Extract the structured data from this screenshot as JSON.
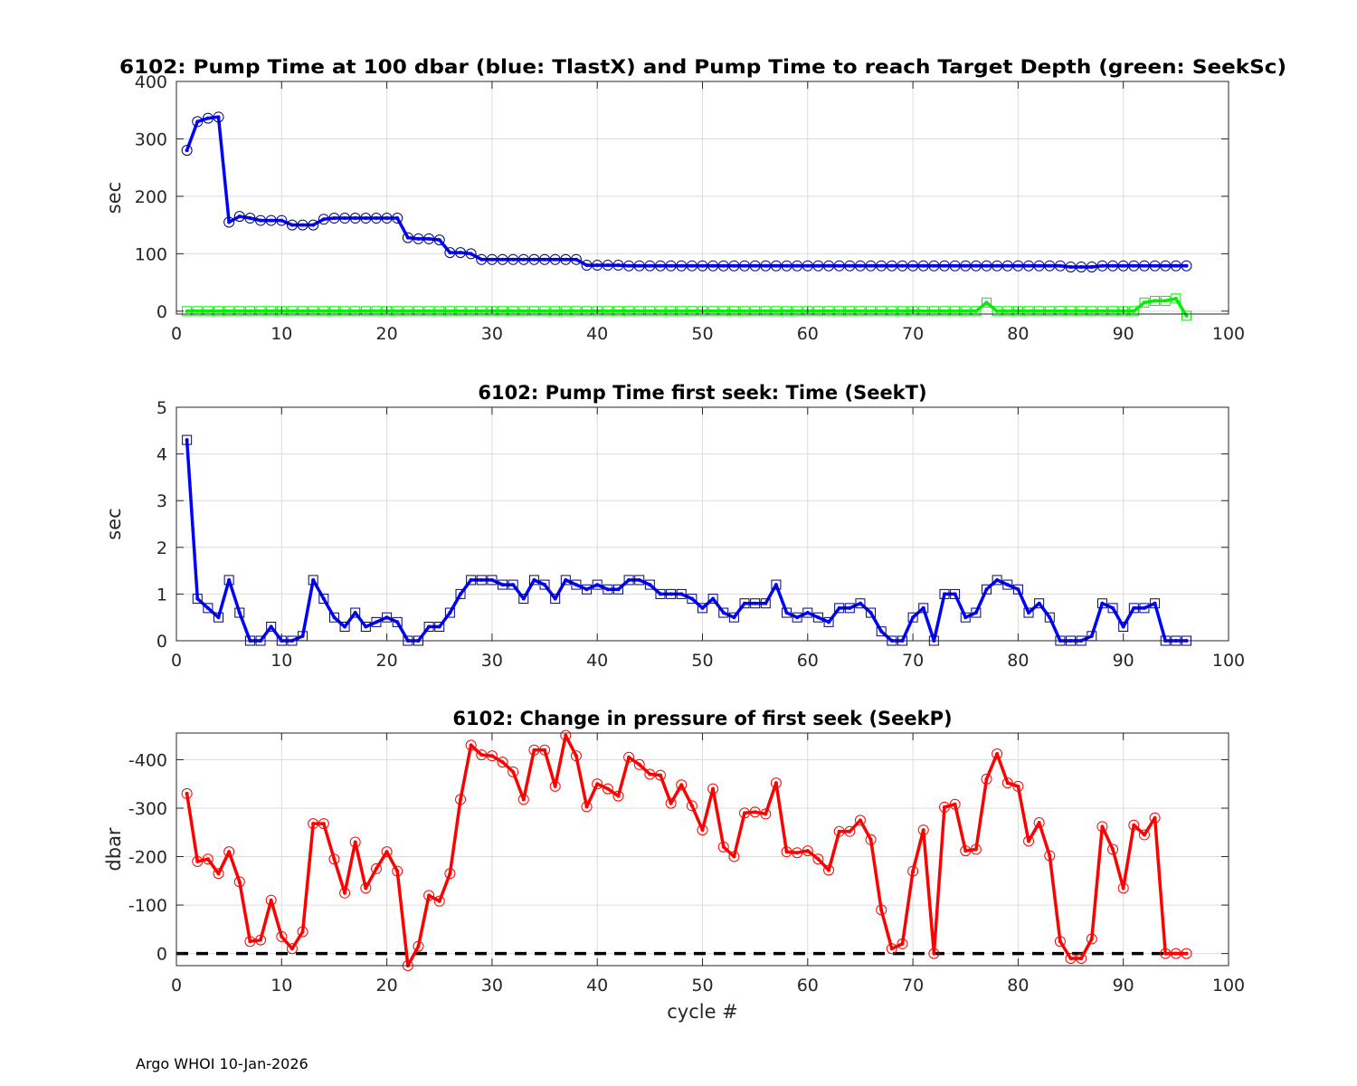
{
  "footer": "Argo WHOI 10-Jan-2026",
  "chart_data": [
    {
      "type": "line",
      "title": "6102:  Pump Time at 100 dbar (blue: TlastX) and Pump Time to reach Target Depth (green: SeekSc)",
      "xlabel": "",
      "ylabel": "sec",
      "xlim": [
        0,
        100
      ],
      "ylim": [
        -5,
        400
      ],
      "reverse_y": false,
      "xticks": [
        0,
        10,
        20,
        30,
        40,
        50,
        60,
        70,
        80,
        90,
        100
      ],
      "yticks": [
        0,
        100,
        200,
        300,
        400
      ],
      "grid": true,
      "series": [
        {
          "color": "#0000ff",
          "marker": "circle",
          "x": [
            1,
            2,
            3,
            4,
            5,
            6,
            7,
            8,
            9,
            10,
            11,
            12,
            13,
            14,
            15,
            16,
            17,
            18,
            19,
            20,
            21,
            22,
            23,
            24,
            25,
            26,
            27,
            28,
            29,
            30,
            31,
            32,
            33,
            34,
            35,
            36,
            37,
            38,
            39,
            40,
            41,
            42,
            43,
            44,
            45,
            46,
            47,
            48,
            49,
            50,
            51,
            52,
            53,
            54,
            55,
            56,
            57,
            58,
            59,
            60,
            61,
            62,
            63,
            64,
            65,
            66,
            67,
            68,
            69,
            70,
            71,
            72,
            73,
            74,
            75,
            76,
            77,
            78,
            79,
            80,
            81,
            82,
            83,
            84,
            85,
            86,
            87,
            88,
            89,
            90,
            91,
            92,
            93,
            94,
            95,
            96
          ],
          "y": [
            280,
            330,
            336,
            338,
            155,
            165,
            162,
            158,
            158,
            158,
            150,
            150,
            150,
            160,
            162,
            162,
            162,
            162,
            162,
            162,
            162,
            128,
            126,
            126,
            124,
            102,
            102,
            100,
            90,
            90,
            90,
            90,
            90,
            90,
            90,
            90,
            90,
            90,
            80,
            80,
            80,
            80,
            79,
            79,
            79,
            79,
            79,
            79,
            79,
            79,
            79,
            79,
            79,
            79,
            79,
            79,
            79,
            79,
            79,
            79,
            79,
            79,
            79,
            79,
            79,
            79,
            79,
            79,
            79,
            79,
            79,
            79,
            79,
            79,
            79,
            79,
            79,
            79,
            79,
            79,
            79,
            79,
            79,
            79,
            77,
            77,
            77,
            79,
            79,
            79,
            79,
            79,
            79,
            79,
            79,
            79
          ]
        },
        {
          "color": "#00ee00",
          "marker": "square",
          "x": [
            1,
            2,
            3,
            4,
            5,
            6,
            7,
            8,
            9,
            10,
            11,
            12,
            13,
            14,
            15,
            16,
            17,
            18,
            19,
            20,
            21,
            22,
            23,
            24,
            25,
            26,
            27,
            28,
            29,
            30,
            31,
            32,
            33,
            34,
            35,
            36,
            37,
            38,
            39,
            40,
            41,
            42,
            43,
            44,
            45,
            46,
            47,
            48,
            49,
            50,
            51,
            52,
            53,
            54,
            55,
            56,
            57,
            58,
            59,
            60,
            61,
            62,
            63,
            64,
            65,
            66,
            67,
            68,
            69,
            70,
            71,
            72,
            73,
            74,
            75,
            76,
            77,
            78,
            79,
            80,
            81,
            82,
            83,
            84,
            85,
            86,
            87,
            88,
            89,
            90,
            91,
            92,
            93,
            94,
            95,
            96
          ],
          "y": [
            0,
            0,
            0,
            0,
            0,
            0,
            0,
            0,
            0,
            0,
            0,
            0,
            0,
            0,
            0,
            0,
            0,
            0,
            0,
            0,
            0,
            0,
            0,
            0,
            0,
            0,
            0,
            0,
            0,
            0,
            0,
            0,
            0,
            0,
            0,
            0,
            0,
            0,
            0,
            0,
            0,
            0,
            0,
            0,
            0,
            0,
            0,
            0,
            0,
            0,
            0,
            0,
            0,
            0,
            0,
            0,
            0,
            0,
            0,
            0,
            0,
            0,
            0,
            0,
            0,
            0,
            0,
            0,
            0,
            0,
            0,
            0,
            0,
            0,
            0,
            0,
            15,
            0,
            0,
            0,
            0,
            0,
            0,
            0,
            0,
            0,
            0,
            0,
            0,
            0,
            0,
            15,
            18,
            18,
            22,
            -8
          ]
        }
      ]
    },
    {
      "type": "line",
      "title": "6102: Pump Time first seek: Time (SeekT)",
      "xlabel": "",
      "ylabel": "sec",
      "xlim": [
        0,
        100
      ],
      "ylim": [
        0,
        5
      ],
      "reverse_y": false,
      "xticks": [
        0,
        10,
        20,
        30,
        40,
        50,
        60,
        70,
        80,
        90,
        100
      ],
      "yticks": [
        0,
        1,
        2,
        3,
        4,
        5
      ],
      "grid": true,
      "series": [
        {
          "color": "#0000ff",
          "marker": "square",
          "x": [
            1,
            2,
            3,
            4,
            5,
            6,
            7,
            8,
            9,
            10,
            11,
            12,
            13,
            14,
            15,
            16,
            17,
            18,
            19,
            20,
            21,
            22,
            23,
            24,
            25,
            26,
            27,
            28,
            29,
            30,
            31,
            32,
            33,
            34,
            35,
            36,
            37,
            38,
            39,
            40,
            41,
            42,
            43,
            44,
            45,
            46,
            47,
            48,
            49,
            50,
            51,
            52,
            53,
            54,
            55,
            56,
            57,
            58,
            59,
            60,
            61,
            62,
            63,
            64,
            65,
            66,
            67,
            68,
            69,
            70,
            71,
            72,
            73,
            74,
            75,
            76,
            77,
            78,
            79,
            80,
            81,
            82,
            83,
            84,
            85,
            86,
            87,
            88,
            89,
            90,
            91,
            92,
            93,
            94,
            95,
            96
          ],
          "y": [
            4.3,
            0.9,
            0.7,
            0.5,
            1.3,
            0.6,
            0,
            0,
            0.3,
            0,
            0,
            0.1,
            1.3,
            0.9,
            0.5,
            0.3,
            0.6,
            0.3,
            0.4,
            0.5,
            0.4,
            0,
            0,
            0.3,
            0.3,
            0.6,
            1.0,
            1.3,
            1.3,
            1.3,
            1.2,
            1.2,
            0.9,
            1.3,
            1.2,
            0.9,
            1.3,
            1.2,
            1.1,
            1.2,
            1.1,
            1.1,
            1.3,
            1.3,
            1.2,
            1.0,
            1.0,
            1.0,
            0.9,
            0.7,
            0.9,
            0.6,
            0.5,
            0.8,
            0.8,
            0.8,
            1.2,
            0.6,
            0.5,
            0.6,
            0.5,
            0.4,
            0.7,
            0.7,
            0.8,
            0.6,
            0.2,
            0,
            0,
            0.5,
            0.7,
            0,
            1.0,
            1.0,
            0.5,
            0.6,
            1.1,
            1.3,
            1.2,
            1.1,
            0.6,
            0.8,
            0.5,
            0,
            0,
            0,
            0.1,
            0.8,
            0.7,
            0.3,
            0.7,
            0.7,
            0.8,
            0,
            0,
            0
          ]
        }
      ]
    },
    {
      "type": "line",
      "title": "6102: Change in pressure of first seek (SeekP)",
      "xlabel": "cycle #",
      "ylabel": "dbar",
      "xlim": [
        0,
        100
      ],
      "ylim": [
        -455,
        25
      ],
      "reverse_y": true,
      "xticks": [
        0,
        10,
        20,
        30,
        40,
        50,
        60,
        70,
        80,
        90,
        100
      ],
      "yticks": [
        0,
        -100,
        -200,
        -300,
        -400
      ],
      "grid": true,
      "reference_line": {
        "y": 0,
        "color": "#000000",
        "dashed": true
      },
      "series": [
        {
          "color": "#ff0000",
          "marker": "circle",
          "x": [
            1,
            2,
            3,
            4,
            5,
            6,
            7,
            8,
            9,
            10,
            11,
            12,
            13,
            14,
            15,
            16,
            17,
            18,
            19,
            20,
            21,
            22,
            23,
            24,
            25,
            26,
            27,
            28,
            29,
            30,
            31,
            32,
            33,
            34,
            35,
            36,
            37,
            38,
            39,
            40,
            41,
            42,
            43,
            44,
            45,
            46,
            47,
            48,
            49,
            50,
            51,
            52,
            53,
            54,
            55,
            56,
            57,
            58,
            59,
            60,
            61,
            62,
            63,
            64,
            65,
            66,
            67,
            68,
            69,
            70,
            71,
            72,
            73,
            74,
            75,
            76,
            77,
            78,
            79,
            80,
            81,
            82,
            83,
            84,
            85,
            86,
            87,
            88,
            89,
            90,
            91,
            92,
            93,
            94,
            95,
            96
          ],
          "y": [
            -330,
            -190,
            -195,
            -165,
            -210,
            -148,
            -25,
            -28,
            -110,
            -35,
            -10,
            -45,
            -268,
            -268,
            -195,
            -125,
            -230,
            -135,
            -175,
            -210,
            -170,
            25,
            -15,
            -120,
            -108,
            -165,
            -318,
            -430,
            -410,
            -408,
            -395,
            -375,
            -318,
            -420,
            -420,
            -345,
            -450,
            -408,
            -303,
            -350,
            -340,
            -325,
            -405,
            -390,
            -370,
            -368,
            -310,
            -348,
            -305,
            -255,
            -340,
            -220,
            -200,
            -290,
            -292,
            -288,
            -352,
            -210,
            -208,
            -212,
            -195,
            -172,
            -252,
            -252,
            -275,
            -235,
            -90,
            -10,
            -20,
            -170,
            -255,
            0,
            -302,
            -308,
            -212,
            -215,
            -360,
            -412,
            -352,
            -345,
            -232,
            -270,
            -202,
            -25,
            10,
            10,
            -30,
            -262,
            -215,
            -135,
            -265,
            -245,
            -280,
            0,
            0,
            0
          ]
        }
      ]
    }
  ]
}
